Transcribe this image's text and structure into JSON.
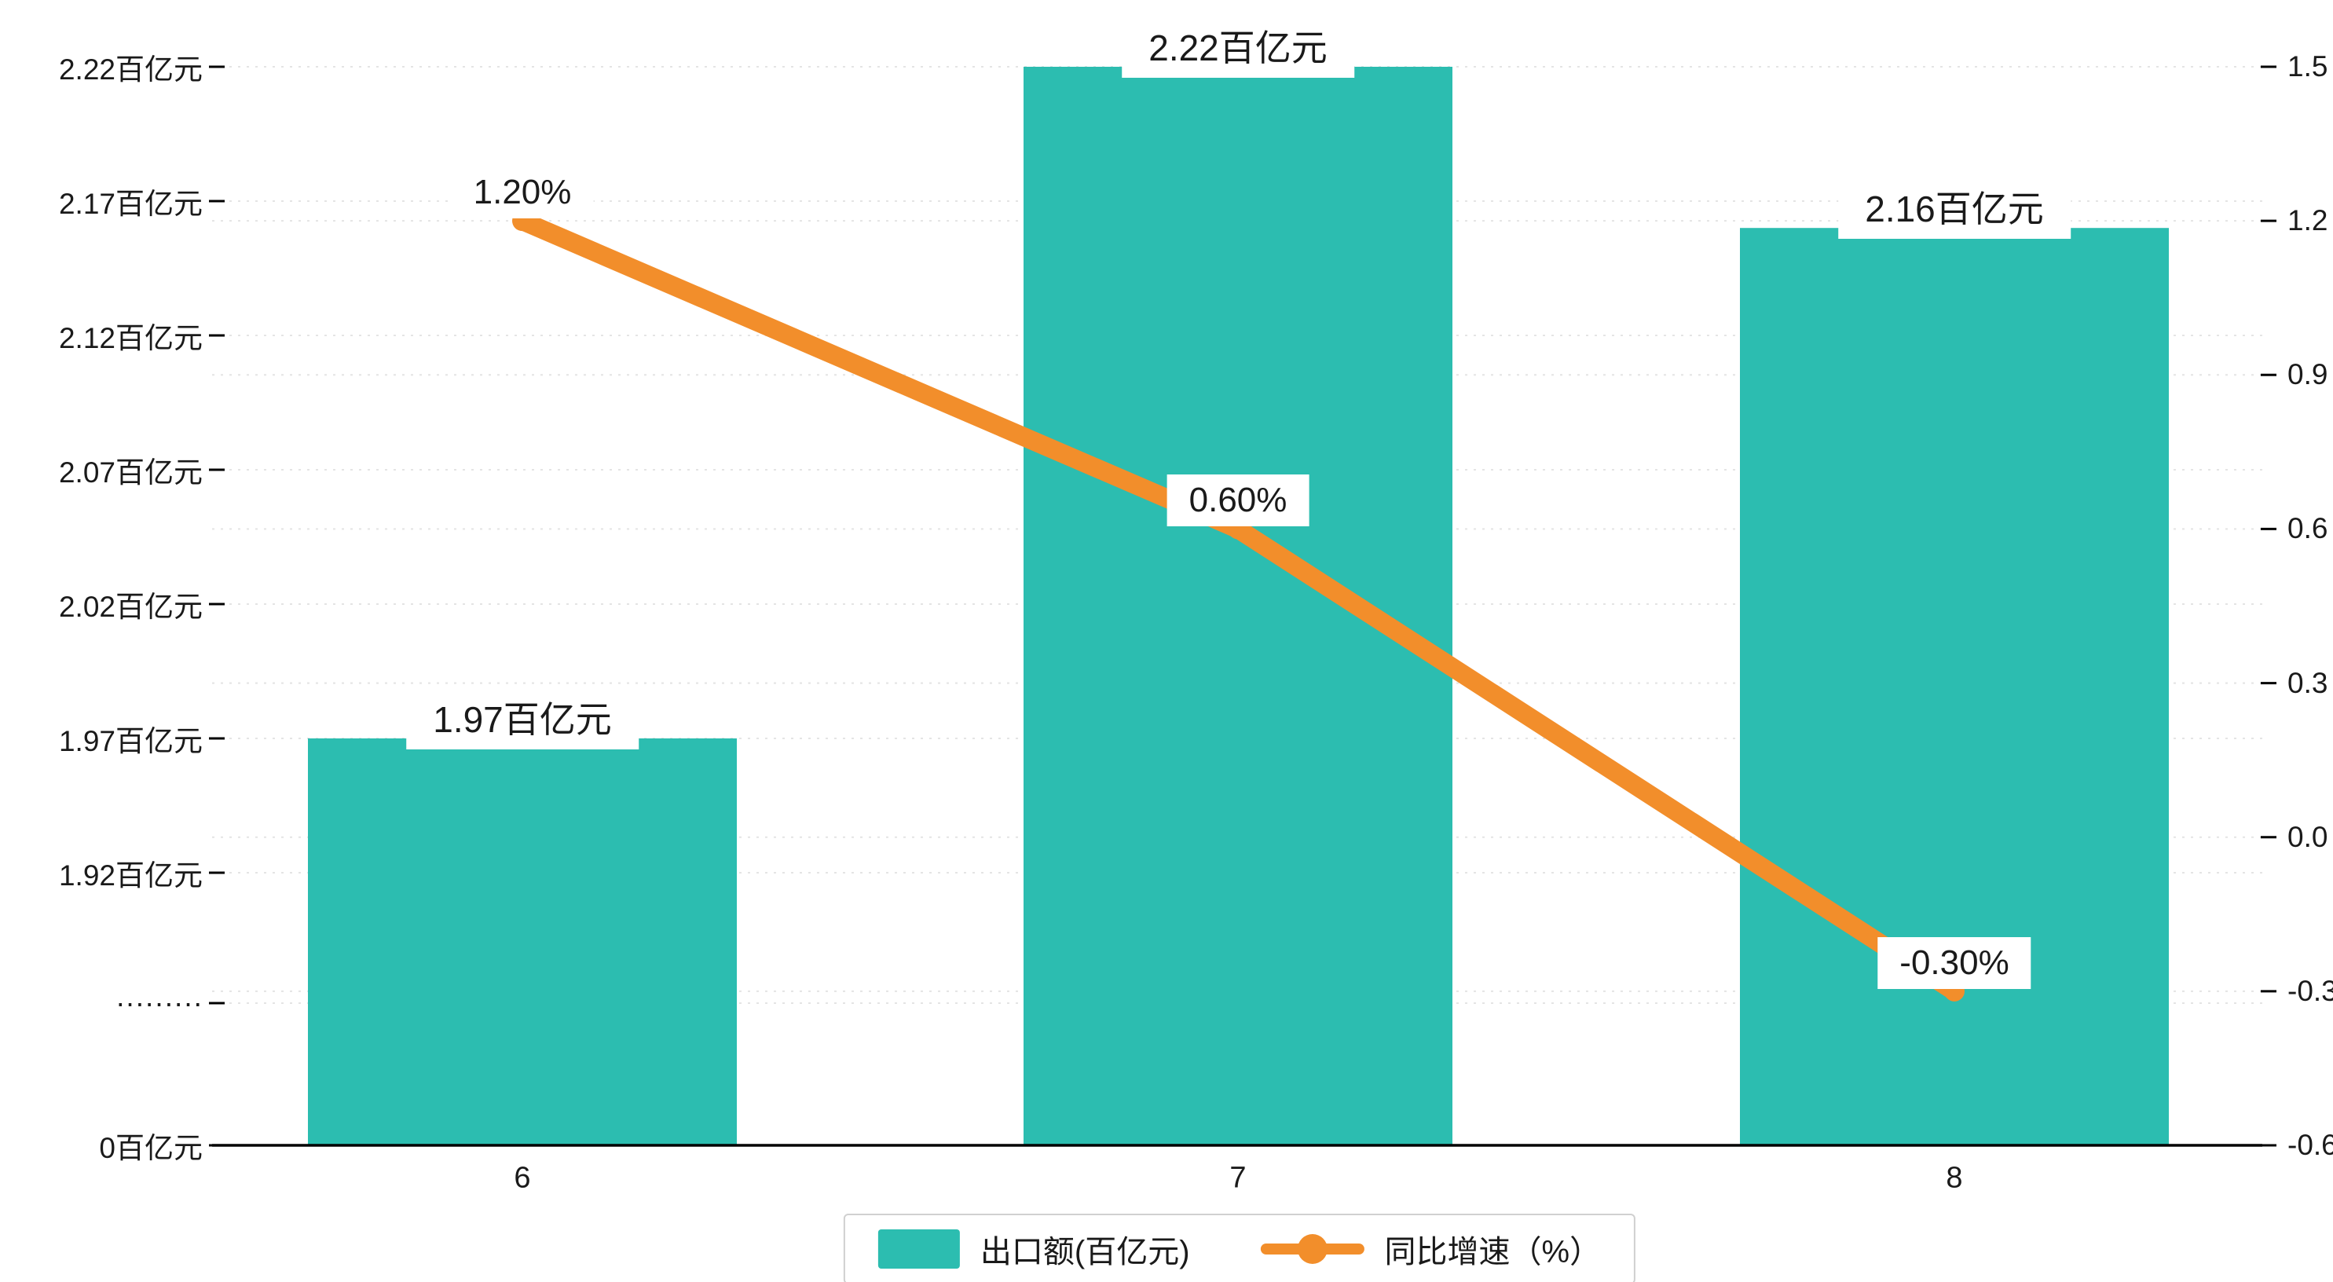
{
  "chart_data": {
    "type": "bar",
    "subtype": "bar+line-combo",
    "categories": [
      "6",
      "7",
      "8"
    ],
    "series": [
      {
        "name": "出口额(百亿元)",
        "type": "bar",
        "axis": "left",
        "color": "#2CBDB0",
        "values": [
          1.97,
          2.22,
          2.16
        ],
        "point_labels": [
          "1.97百亿元",
          "2.22百亿元",
          "2.16百亿元"
        ]
      },
      {
        "name": "同比增速（%）",
        "type": "line",
        "axis": "right",
        "color": "#F28E2B",
        "values": [
          1.2,
          0.6,
          -0.3
        ],
        "point_labels": [
          "1.20%",
          "0.60%",
          "-0.30%"
        ]
      }
    ],
    "left_axis": {
      "unit": "百亿元",
      "broken_axis": true,
      "tick_labels": [
        "2.22百亿元",
        "2.17百亿元",
        "2.12百亿元",
        "2.07百亿元",
        "2.02百亿元",
        "1.97百亿元",
        "1.92百亿元",
        "·········",
        "0百亿元"
      ],
      "tick_values": [
        2.22,
        2.17,
        2.12,
        2.07,
        2.02,
        1.97,
        1.92,
        null,
        0
      ]
    },
    "right_axis": {
      "min": -0.6,
      "max": 1.5,
      "step": 0.3,
      "tick_labels": [
        "1.5",
        "1.2",
        "0.9",
        "0.6",
        "0.3",
        "0.0",
        "-0.3",
        "-0.6"
      ],
      "tick_values": [
        1.5,
        1.2,
        0.9,
        0.6,
        0.3,
        0.0,
        -0.3,
        -0.6
      ]
    },
    "legend": {
      "position": "bottom-center",
      "items": [
        {
          "label": "出口额(百亿元)",
          "marker": "bar-swatch",
          "color": "#2CBDB0"
        },
        {
          "label": "同比增速（%）",
          "marker": "line-dot-swatch",
          "color": "#F28E2B"
        }
      ]
    },
    "grid": {
      "horizontal": true,
      "style": "dotted"
    }
  },
  "colors": {
    "bar": "#2CBDB0",
    "line": "#F28E2B",
    "grid": "#e4e4e4",
    "axis": "#000000",
    "text": "#1a1a1a",
    "label_bg": "#ffffff"
  }
}
